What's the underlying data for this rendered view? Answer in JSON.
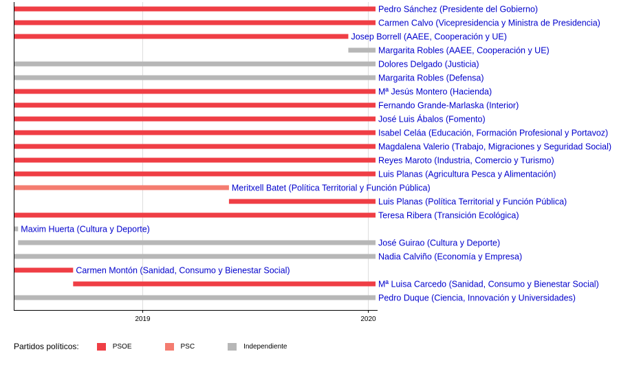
{
  "chart_data": {
    "type": "bar",
    "subtype": "timeline",
    "x_axis": {
      "ticks": [
        "2019",
        "2020"
      ],
      "range": [
        "2018-06-07",
        "2020-01-13"
      ],
      "grid": true
    },
    "colors": {
      "PSOE": "#ef3e45",
      "PSC": "#f47c70",
      "Independiente": "#b7b7b7"
    },
    "bars": [
      {
        "label": "Pedro Sánchez (Presidente del Gobierno)",
        "party": "PSOE",
        "start": "2018-06-07",
        "end": "2020-01-13"
      },
      {
        "label": "Carmen Calvo (Vicepresidencia y Ministra de Presidencia)",
        "party": "PSOE",
        "start": "2018-06-07",
        "end": "2020-01-13"
      },
      {
        "label": "Josep Borrell (AAEE, Cooperación y UE)",
        "party": "PSOE",
        "start": "2018-06-07",
        "end": "2019-11-30"
      },
      {
        "label": "Margarita Robles (AAEE, Cooperación y UE)",
        "party": "Independiente",
        "start": "2019-11-30",
        "end": "2020-01-13"
      },
      {
        "label": "Dolores Delgado (Justicia)",
        "party": "Independiente",
        "start": "2018-06-07",
        "end": "2020-01-13"
      },
      {
        "label": "Margarita Robles (Defensa)",
        "party": "Independiente",
        "start": "2018-06-07",
        "end": "2020-01-13"
      },
      {
        "label": "Mª Jesús Montero (Hacienda)",
        "party": "PSOE",
        "start": "2018-06-07",
        "end": "2020-01-13"
      },
      {
        "label": "Fernando Grande-Marlaska (Interior)",
        "party": "PSOE",
        "start": "2018-06-07",
        "end": "2020-01-13"
      },
      {
        "label": "José Luis Ábalos (Fomento)",
        "party": "PSOE",
        "start": "2018-06-07",
        "end": "2020-01-13"
      },
      {
        "label": "Isabel Celáa (Educación, Formación Profesional y Portavoz)",
        "party": "PSOE",
        "start": "2018-06-07",
        "end": "2020-01-13"
      },
      {
        "label": "Magdalena Valerio (Trabajo, Migraciones y Seguridad Social)",
        "party": "PSOE",
        "start": "2018-06-07",
        "end": "2020-01-13"
      },
      {
        "label": "Reyes Maroto (Industria, Comercio y Turismo)",
        "party": "PSOE",
        "start": "2018-06-07",
        "end": "2020-01-13"
      },
      {
        "label": "Luis Planas (Agricultura Pesca y Alimentación)",
        "party": "PSOE",
        "start": "2018-06-07",
        "end": "2020-01-13"
      },
      {
        "label": "Meritxell Batet (Política Territorial y Función Pública)",
        "party": "PSC",
        "start": "2018-06-07",
        "end": "2019-05-21"
      },
      {
        "label": "Luis Planas (Política Territorial y Función Pública)",
        "party": "PSOE",
        "start": "2019-05-21",
        "end": "2020-01-13"
      },
      {
        "label": "Teresa Ribera (Transición Ecológica)",
        "party": "PSOE",
        "start": "2018-06-07",
        "end": "2020-01-13"
      },
      {
        "label": "Maxim Huerta (Cultura y Deporte)",
        "party": "Independiente",
        "start": "2018-06-07",
        "end": "2018-06-14"
      },
      {
        "label": "José Guirao (Cultura y Deporte)",
        "party": "Independiente",
        "start": "2018-06-14",
        "end": "2020-01-13"
      },
      {
        "label": "Nadia Calviño (Economía y Empresa)",
        "party": "Independiente",
        "start": "2018-06-07",
        "end": "2020-01-13"
      },
      {
        "label": "Carmen Montón (Sanidad, Consumo y Bienestar Social)",
        "party": "PSOE",
        "start": "2018-06-07",
        "end": "2018-09-11"
      },
      {
        "label": "Mª Luisa Carcedo (Sanidad, Consumo y Bienestar Social)",
        "party": "PSOE",
        "start": "2018-09-11",
        "end": "2020-01-13"
      },
      {
        "label": "Pedro Duque (Ciencia, Innovación y Universidades)",
        "party": "Independiente",
        "start": "2018-06-07",
        "end": "2020-01-13"
      }
    ],
    "legend": {
      "title": "Partidos políticos:",
      "position": "bottom-left",
      "items": [
        {
          "name": "PSOE",
          "color": "#ef3e45"
        },
        {
          "name": "PSC",
          "color": "#f47c70"
        },
        {
          "name": "Independiente",
          "color": "#b7b7b7"
        }
      ]
    }
  }
}
